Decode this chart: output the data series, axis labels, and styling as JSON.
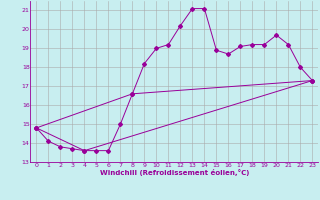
{
  "xlabel": "Windchill (Refroidissement éolien,°C)",
  "background_color": "#c8eef0",
  "grid_color": "#aaaaaa",
  "line_color": "#990099",
  "xlim": [
    -0.5,
    23.5
  ],
  "ylim": [
    13,
    21.5
  ],
  "yticks": [
    13,
    14,
    15,
    16,
    17,
    18,
    19,
    20,
    21
  ],
  "xticks": [
    0,
    1,
    2,
    3,
    4,
    5,
    6,
    7,
    8,
    9,
    10,
    11,
    12,
    13,
    14,
    15,
    16,
    17,
    18,
    19,
    20,
    21,
    22,
    23
  ],
  "series": [
    [
      0,
      14.8
    ],
    [
      1,
      14.1
    ],
    [
      2,
      13.8
    ],
    [
      3,
      13.7
    ],
    [
      4,
      13.6
    ],
    [
      5,
      13.6
    ],
    [
      6,
      13.6
    ],
    [
      7,
      15.0
    ],
    [
      8,
      16.6
    ],
    [
      9,
      18.2
    ],
    [
      10,
      19.0
    ],
    [
      11,
      19.2
    ],
    [
      12,
      20.2
    ],
    [
      13,
      21.1
    ],
    [
      14,
      21.1
    ],
    [
      15,
      18.9
    ],
    [
      16,
      18.7
    ],
    [
      17,
      19.1
    ],
    [
      18,
      19.2
    ],
    [
      19,
      19.2
    ],
    [
      20,
      19.7
    ],
    [
      21,
      19.2
    ],
    [
      22,
      18.0
    ],
    [
      23,
      17.3
    ]
  ],
  "line2": [
    [
      0,
      14.8
    ],
    [
      4,
      13.6
    ],
    [
      23,
      17.3
    ]
  ],
  "line3": [
    [
      0,
      14.8
    ],
    [
      8,
      16.6
    ],
    [
      23,
      17.3
    ]
  ]
}
